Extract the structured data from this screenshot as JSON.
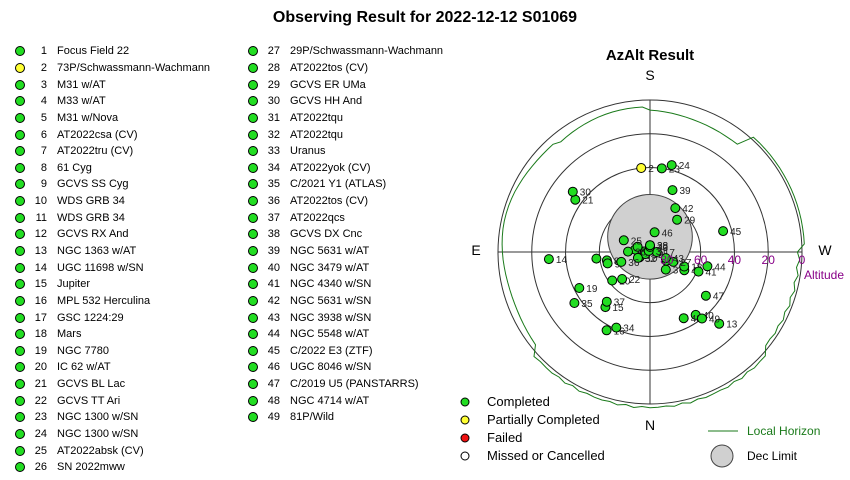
{
  "title": "Observing Result for 2022-12-12 S01069",
  "colors": {
    "completed": "#22dd22",
    "partial": "#ffff33",
    "failed": "#ee1111",
    "missed": "#ffffff",
    "horizon": "#1a7a1a",
    "altitude_label": "#880088"
  },
  "objects": [
    {
      "num": "1",
      "name": "Focus Field 22",
      "status": "completed"
    },
    {
      "num": "2",
      "name": "73P/Schwassmann-Wachmann",
      "status": "partial"
    },
    {
      "num": "3",
      "name": "M31 w/AT",
      "status": "completed"
    },
    {
      "num": "4",
      "name": "M33 w/AT",
      "status": "completed"
    },
    {
      "num": "5",
      "name": "M31 w/Nova",
      "status": "completed"
    },
    {
      "num": "6",
      "name": "AT2022csa (CV)",
      "status": "completed"
    },
    {
      "num": "7",
      "name": "AT2022tru (CV)",
      "status": "completed"
    },
    {
      "num": "8",
      "name": "61 Cyg",
      "status": "completed"
    },
    {
      "num": "9",
      "name": "GCVS SS Cyg",
      "status": "completed"
    },
    {
      "num": "10",
      "name": "WDS GRB 34",
      "status": "completed"
    },
    {
      "num": "11",
      "name": "WDS GRB 34",
      "status": "completed"
    },
    {
      "num": "12",
      "name": "GCVS RX And",
      "status": "completed"
    },
    {
      "num": "13",
      "name": "NGC 1363 w/AT",
      "status": "completed"
    },
    {
      "num": "14",
      "name": "UGC 11698 w/SN",
      "status": "completed"
    },
    {
      "num": "15",
      "name": "Jupiter",
      "status": "completed"
    },
    {
      "num": "16",
      "name": "MPL 532 Herculina",
      "status": "completed"
    },
    {
      "num": "17",
      "name": "GSC 1224:29",
      "status": "completed"
    },
    {
      "num": "18",
      "name": "Mars",
      "status": "completed"
    },
    {
      "num": "19",
      "name": "NGC 7780",
      "status": "completed"
    },
    {
      "num": "20",
      "name": "IC 62 w/AT",
      "status": "completed"
    },
    {
      "num": "21",
      "name": "GCVS BL Lac",
      "status": "completed"
    },
    {
      "num": "22",
      "name": "GCVS TT Ari",
      "status": "completed"
    },
    {
      "num": "23",
      "name": "NGC 1300 w/SN",
      "status": "completed"
    },
    {
      "num": "24",
      "name": "NGC 1300 w/SN",
      "status": "completed"
    },
    {
      "num": "25",
      "name": "AT2022absk (CV)",
      "status": "completed"
    },
    {
      "num": "26",
      "name": "SN 2022mww",
      "status": "completed"
    },
    {
      "num": "27",
      "name": "29P/Schwassmann-Wachmann",
      "status": "completed"
    },
    {
      "num": "28",
      "name": "AT2022tos (CV)",
      "status": "completed"
    },
    {
      "num": "29",
      "name": "GCVS ER UMa",
      "status": "completed"
    },
    {
      "num": "30",
      "name": "GCVS HH And",
      "status": "completed"
    },
    {
      "num": "31",
      "name": "AT2022tqu",
      "status": "completed"
    },
    {
      "num": "32",
      "name": "AT2022tqu",
      "status": "completed"
    },
    {
      "num": "33",
      "name": "Uranus",
      "status": "completed"
    },
    {
      "num": "34",
      "name": "AT2022yok (CV)",
      "status": "completed"
    },
    {
      "num": "35",
      "name": "C/2021 Y1 (ATLAS)",
      "status": "completed"
    },
    {
      "num": "36",
      "name": "AT2022tos (CV)",
      "status": "completed"
    },
    {
      "num": "37",
      "name": "AT2022qcs",
      "status": "completed"
    },
    {
      "num": "38",
      "name": "GCVS DX Cnc",
      "status": "completed"
    },
    {
      "num": "39",
      "name": "NGC 5631 w/AT",
      "status": "completed"
    },
    {
      "num": "40",
      "name": "NGC 3479 w/AT",
      "status": "completed"
    },
    {
      "num": "41",
      "name": "NGC 4340 w/SN",
      "status": "completed"
    },
    {
      "num": "42",
      "name": "NGC 5631 w/SN",
      "status": "completed"
    },
    {
      "num": "43",
      "name": "NGC 3938 w/SN",
      "status": "completed"
    },
    {
      "num": "44",
      "name": "NGC 5548 w/AT",
      "status": "completed"
    },
    {
      "num": "45",
      "name": "C/2022 E3 (ZTF)",
      "status": "completed"
    },
    {
      "num": "46",
      "name": "UGC 8046 w/SN",
      "status": "completed"
    },
    {
      "num": "47",
      "name": "C/2019 U5 (PANSTARRS)",
      "status": "completed"
    },
    {
      "num": "48",
      "name": "NGC 4714 w/AT",
      "status": "completed"
    },
    {
      "num": "49",
      "name": "81P/Wild",
      "status": "completed"
    }
  ],
  "chart_data": {
    "type": "scatter",
    "title": "AzAlt Result",
    "projection": "polar altitude-azimuth (S at top, N at bottom, E left, W right)",
    "compass": {
      "south": "S",
      "north": "N",
      "east": "E",
      "west": "W"
    },
    "altitude_axis": {
      "label": "Altitude",
      "ticks": [
        "80",
        "60",
        "40",
        "20",
        "0"
      ],
      "tick_values": [
        80,
        60,
        40,
        20,
        0
      ],
      "range": [
        0,
        90
      ]
    },
    "dec_limit_circle": {
      "az_deg": 0,
      "alt_deg": 65,
      "radius_deg": 15
    },
    "points": [
      {
        "label": "1",
        "az": 277,
        "alt": 87,
        "status": "completed"
      },
      {
        "label": "2",
        "az": 354,
        "alt": 40,
        "status": "partial"
      },
      {
        "label": "3",
        "az": 138,
        "alt": 76,
        "status": "completed"
      },
      {
        "label": "4",
        "az": 118,
        "alt": 67,
        "status": "completed"
      },
      {
        "label": "5",
        "az": 118,
        "alt": 79,
        "status": "completed"
      },
      {
        "label": "6",
        "az": 263,
        "alt": 58,
        "status": "completed"
      },
      {
        "label": "7",
        "az": 279,
        "alt": 81,
        "status": "completed"
      },
      {
        "label": "8",
        "az": 259,
        "alt": 64,
        "status": "completed"
      },
      {
        "label": "9",
        "az": 255,
        "alt": 64,
        "status": "completed"
      },
      {
        "label": "10",
        "az": 243,
        "alt": 83,
        "status": "completed"
      },
      {
        "label": "11",
        "az": 293,
        "alt": 82,
        "status": "completed"
      },
      {
        "label": "12",
        "az": 246,
        "alt": 87,
        "status": "completed"
      },
      {
        "label": "13",
        "az": 136,
        "alt": 31,
        "status": "completed"
      },
      {
        "label": "14",
        "az": 266,
        "alt": 30,
        "status": "completed"
      },
      {
        "label": "15",
        "az": 219,
        "alt": 48,
        "status": "completed"
      },
      {
        "label": "16",
        "az": 209,
        "alt": 37,
        "status": "completed"
      },
      {
        "label": "17",
        "az": 90,
        "alt": 86,
        "status": "completed"
      },
      {
        "label": "18",
        "az": 113,
        "alt": 68,
        "status": "completed"
      },
      {
        "label": "19",
        "az": 243,
        "alt": 43,
        "status": "completed"
      },
      {
        "label": "20",
        "az": 233,
        "alt": 62,
        "status": "completed"
      },
      {
        "label": "21",
        "az": 305,
        "alt": 36,
        "status": "completed"
      },
      {
        "label": "22",
        "az": 226,
        "alt": 67,
        "status": "completed"
      },
      {
        "label": "23",
        "az": 8,
        "alt": 40,
        "status": "completed"
      },
      {
        "label": "24",
        "az": 14,
        "alt": 37,
        "status": "completed"
      },
      {
        "label": "25",
        "az": 294,
        "alt": 73,
        "status": "completed"
      },
      {
        "label": "26",
        "az": 271,
        "alt": 77,
        "status": "completed"
      },
      {
        "label": "27",
        "az": 113,
        "alt": 75,
        "status": "completed"
      },
      {
        "label": "28",
        "az": 0,
        "alt": 86,
        "status": "completed"
      },
      {
        "label": "29",
        "az": 40,
        "alt": 65,
        "status": "completed"
      },
      {
        "label": "30",
        "az": 308,
        "alt": 32,
        "status": "completed"
      },
      {
        "label": "31",
        "az": 312,
        "alt": 89,
        "status": "completed"
      },
      {
        "label": "32",
        "az": 244,
        "alt": 82,
        "status": "completed"
      },
      {
        "label": "33",
        "az": 0,
        "alt": 87,
        "status": "completed"
      },
      {
        "label": "34",
        "az": 204,
        "alt": 41,
        "status": "completed"
      },
      {
        "label": "35",
        "az": 236,
        "alt": 36,
        "status": "completed"
      },
      {
        "label": "36",
        "az": 251,
        "alt": 72,
        "status": "completed"
      },
      {
        "label": "37",
        "az": 221,
        "alt": 51,
        "status": "completed"
      },
      {
        "label": "38",
        "az": 0,
        "alt": 86,
        "status": "completed"
      },
      {
        "label": "39",
        "az": 20,
        "alt": 51,
        "status": "completed"
      },
      {
        "label": "40",
        "az": 144,
        "alt": 44,
        "status": "completed"
      },
      {
        "label": "41",
        "az": 112,
        "alt": 59,
        "status": "completed"
      },
      {
        "label": "42",
        "az": 30,
        "alt": 60,
        "status": "completed"
      },
      {
        "label": "43",
        "az": 111,
        "alt": 80,
        "status": "completed"
      },
      {
        "label": "44",
        "az": 104,
        "alt": 55,
        "status": "completed"
      },
      {
        "label": "45",
        "az": 74,
        "alt": 45,
        "status": "completed"
      },
      {
        "label": "46",
        "az": 13,
        "alt": 78,
        "status": "completed"
      },
      {
        "label": "47",
        "az": 128,
        "alt": 48,
        "status": "completed"
      },
      {
        "label": "48",
        "az": 153,
        "alt": 46,
        "status": "completed"
      },
      {
        "label": "49",
        "az": 142,
        "alt": 40,
        "status": "completed"
      }
    ],
    "legend": [
      {
        "label": "Completed",
        "status": "completed"
      },
      {
        "label": "Partially Completed",
        "status": "partial"
      },
      {
        "label": "Failed",
        "status": "failed"
      },
      {
        "label": "Missed or Cancelled",
        "status": "missed"
      }
    ],
    "legend_horizon": "Local Horizon",
    "legend_dec_limit": "Dec Limit"
  }
}
